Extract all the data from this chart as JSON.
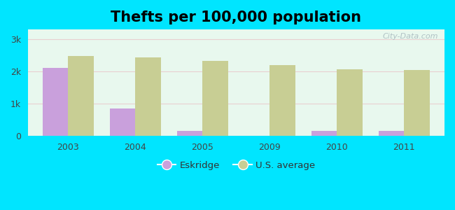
{
  "title": "Thefts per 100,000 population",
  "years": [
    "2003",
    "2004",
    "2005",
    "2009",
    "2010",
    "2011"
  ],
  "eskridge": [
    2100,
    850,
    150,
    0,
    160,
    160
  ],
  "us_average": [
    2480,
    2430,
    2330,
    2200,
    2060,
    2040
  ],
  "eskridge_color": "#c9a0dc",
  "us_avg_color": "#c8ce94",
  "outer_background": "#00e5ff",
  "ylim": [
    0,
    3300
  ],
  "yticks": [
    0,
    1000,
    2000,
    3000
  ],
  "ytick_labels": [
    "0",
    "1k",
    "2k",
    "3k"
  ],
  "bar_width": 0.38,
  "legend_eskridge": "Eskridge",
  "legend_us": "U.S. average",
  "title_fontsize": 15,
  "watermark": "City-Data.com"
}
